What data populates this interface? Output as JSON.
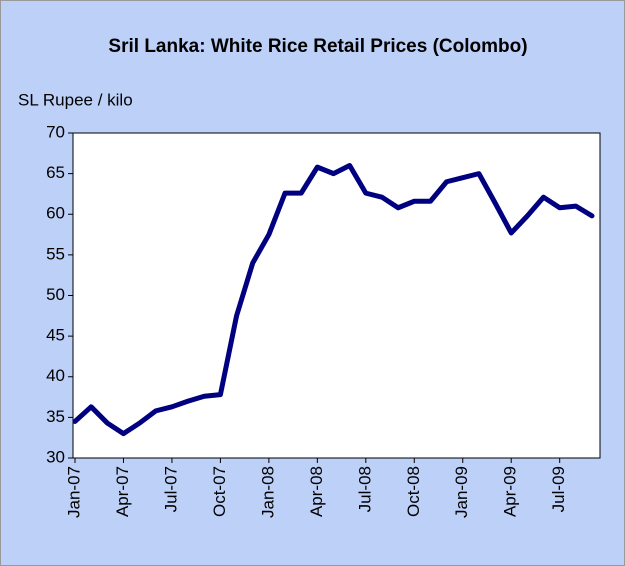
{
  "chart_data": {
    "type": "line",
    "title": "Sril Lanka: White Rice Retail Prices (Colombo)",
    "y_label": "SL Rupee / kilo",
    "categories": [
      "Jan-07",
      null,
      null,
      "Apr-07",
      null,
      null,
      "Jul-07",
      null,
      null,
      "Oct-07",
      null,
      null,
      "Jan-08",
      null,
      null,
      "Apr-08",
      null,
      null,
      "Jul-08",
      null,
      null,
      "Oct-08",
      null,
      null,
      "Jan-09",
      null,
      null,
      "Apr-09",
      null,
      null,
      "Jul-09",
      null,
      null
    ],
    "series": [
      {
        "name": "White rice",
        "color": "#000080",
        "values": [
          34.5,
          36.3,
          34.3,
          33.0,
          34.3,
          35.8,
          36.3,
          37.0,
          37.6,
          37.8,
          47.5,
          54.0,
          57.5,
          62.6,
          62.6,
          65.8,
          65.0,
          66.0,
          62.6,
          62.1,
          60.8,
          61.6,
          61.6,
          64.0,
          64.5,
          65.0,
          61.4,
          57.7,
          59.8,
          62.1,
          60.8,
          61.0,
          59.8
        ]
      }
    ],
    "ylim": [
      30,
      70
    ],
    "yticks": [
      30,
      35,
      40,
      45,
      50,
      55,
      60,
      65,
      70
    ],
    "grid": false
  }
}
